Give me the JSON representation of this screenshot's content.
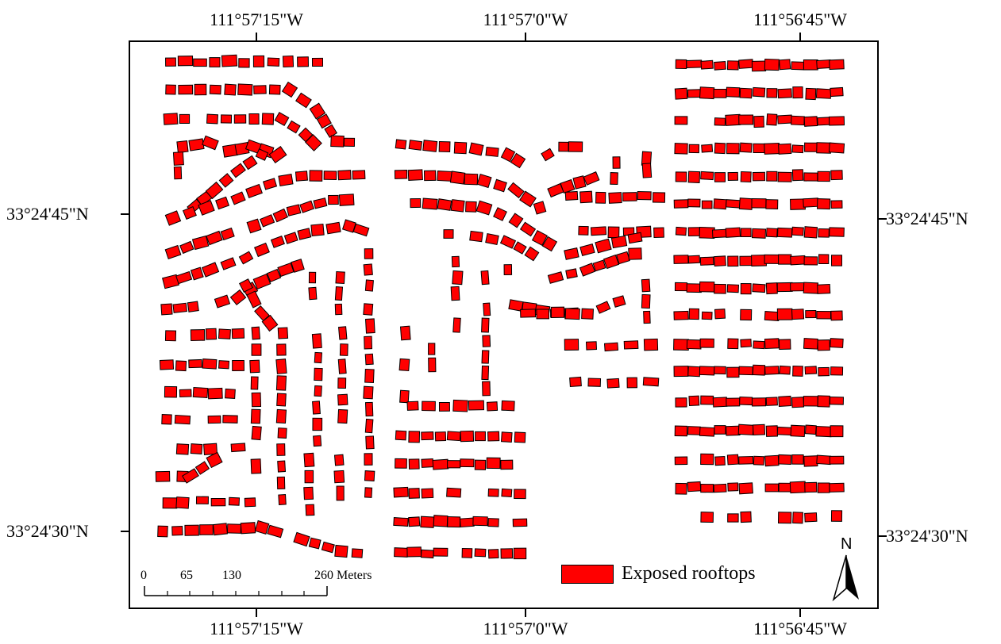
{
  "graticule": {
    "lon_top": [
      "111°57'15\"W",
      "111°57'0\"W",
      "111°56'45\"W"
    ],
    "lon_bottom": [
      "111°57'15\"W",
      "111°57'0\"W",
      "111°56'45\"W"
    ],
    "lat_left": [
      "33°24'45\"N",
      "33°24'30\"N"
    ],
    "lat_right": [
      "33°24'45\"N",
      "33°24'30\"N"
    ]
  },
  "scale_bar": {
    "labels": [
      "0",
      "65",
      "130",
      "260 Meters"
    ]
  },
  "legend": {
    "label": "Exposed rooftops",
    "color": "#ff0000"
  },
  "north_arrow": {
    "letter": "N"
  },
  "rooftop_color": "#ff0000",
  "rooftop_outline": "#000000"
}
